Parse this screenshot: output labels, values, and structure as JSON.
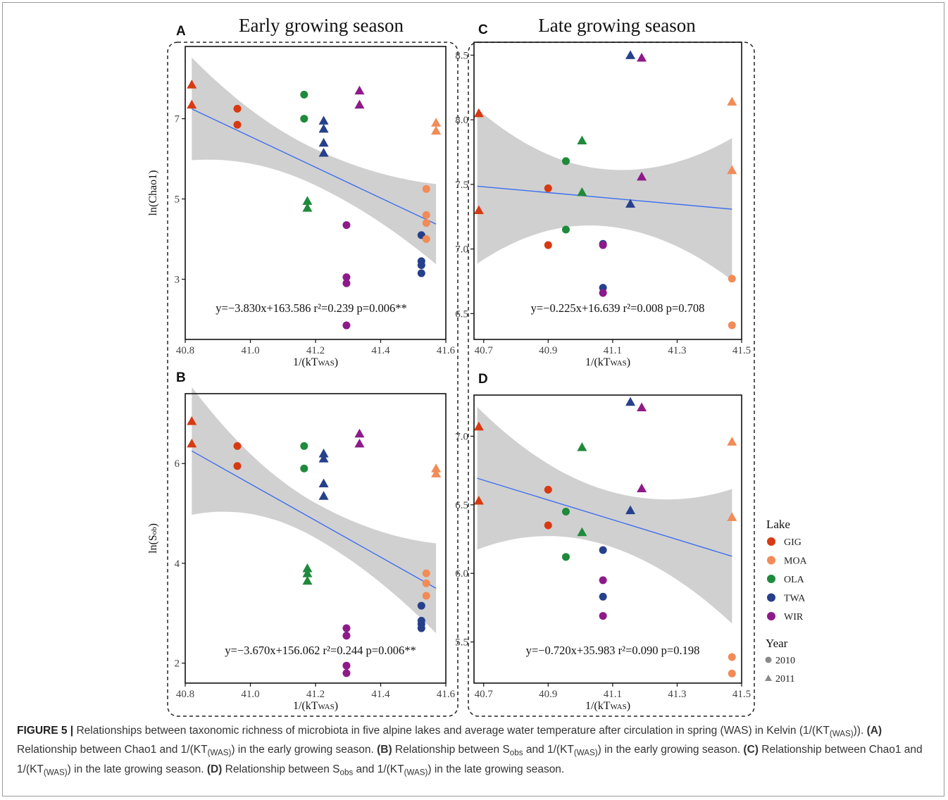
{
  "figure": {
    "titles": {
      "early": "Early growing season",
      "late": "Late growing season"
    },
    "caption": {
      "label": "FIGURE 5 |",
      "parts": [
        {
          "t": " Relationships between taxonomic richness of microbiota in five alpine lakes and average water temperature after circulation in spring (WAS) in Kelvin (1/(KT"
        },
        {
          "t": "(WAS)",
          "sub": true
        },
        {
          "t": ")). "
        },
        {
          "t": "(A)",
          "b": true
        },
        {
          "t": " Relationship between Chao1 and 1/(KT"
        },
        {
          "t": "(WAS)",
          "sub": true
        },
        {
          "t": ") in the early growing season. "
        },
        {
          "t": "(B)",
          "b": true
        },
        {
          "t": " Relationship between S"
        },
        {
          "t": "obs",
          "sub": true
        },
        {
          "t": " and 1/(KT"
        },
        {
          "t": "(WAS)",
          "sub": true
        },
        {
          "t": ") in the early growing season. "
        },
        {
          "t": "(C)",
          "b": true
        },
        {
          "t": " Relationship between Chao1 and 1/(KT"
        },
        {
          "t": "(WAS)",
          "sub": true
        },
        {
          "t": ") in the late growing season. "
        },
        {
          "t": "(D)",
          "b": true
        },
        {
          "t": " Relationship between S"
        },
        {
          "t": "obs",
          "sub": true
        },
        {
          "t": " and 1/(KT"
        },
        {
          "t": "(WAS)",
          "sub": true
        },
        {
          "t": ") in the late growing season."
        }
      ]
    }
  },
  "legend": {
    "lake_title": "Lake",
    "lakes": [
      {
        "name": "GIG",
        "color": "#d73a12"
      },
      {
        "name": "MOA",
        "color": "#f28b57"
      },
      {
        "name": "OLA",
        "color": "#1f8a3c"
      },
      {
        "name": "TWA",
        "color": "#27408b"
      },
      {
        "name": "WIR",
        "color": "#8e1a8a"
      }
    ],
    "year_title": "Year",
    "years": [
      {
        "name": "2010",
        "shape": "circle"
      },
      {
        "name": "2011",
        "shape": "triangle"
      }
    ],
    "year_color": "#8a8a8a"
  },
  "chart_data": [
    {
      "panel": "A",
      "type": "scatter",
      "season": "early",
      "xlabel_main": "1/(kT",
      "xlabel_sub": "WAS",
      "xlabel_end": ")",
      "ylabel_main": "ln(Chao1)",
      "ylabel_sub": "",
      "xlim": [
        40.8,
        41.6
      ],
      "ylim": [
        1.5,
        8.8
      ],
      "xticks": [
        40.8,
        41.0,
        41.2,
        41.4,
        41.6
      ],
      "xtick_labels": [
        "40.8",
        "41.0",
        "41.2",
        "41.4",
        "41.6"
      ],
      "yticks": [
        3,
        5,
        7
      ],
      "ytick_labels": [
        "3",
        "5",
        "7"
      ],
      "fit": {
        "slope": -3.83,
        "intercept": 163.586,
        "x_range": [
          40.82,
          41.57
        ],
        "ci_halfwidth": [
          1.28,
          0.45,
          1.0
        ]
      },
      "equation": "y=−3.830x+163.586 r²=0.239 p=0.006**",
      "points": [
        {
          "x": 40.82,
          "y": 7.85,
          "lake": "GIG",
          "year": "2011"
        },
        {
          "x": 40.82,
          "y": 7.35,
          "lake": "GIG",
          "year": "2011"
        },
        {
          "x": 40.96,
          "y": 7.25,
          "lake": "GIG",
          "year": "2010"
        },
        {
          "x": 40.96,
          "y": 6.85,
          "lake": "GIG",
          "year": "2010"
        },
        {
          "x": 41.165,
          "y": 7.6,
          "lake": "OLA",
          "year": "2010"
        },
        {
          "x": 41.165,
          "y": 7.0,
          "lake": "OLA",
          "year": "2010"
        },
        {
          "x": 41.175,
          "y": 4.95,
          "lake": "OLA",
          "year": "2011"
        },
        {
          "x": 41.175,
          "y": 4.78,
          "lake": "OLA",
          "year": "2011"
        },
        {
          "x": 41.225,
          "y": 6.95,
          "lake": "TWA",
          "year": "2011"
        },
        {
          "x": 41.225,
          "y": 6.75,
          "lake": "TWA",
          "year": "2011"
        },
        {
          "x": 41.225,
          "y": 6.4,
          "lake": "TWA",
          "year": "2011"
        },
        {
          "x": 41.225,
          "y": 6.15,
          "lake": "TWA",
          "year": "2011"
        },
        {
          "x": 41.295,
          "y": 4.35,
          "lake": "WIR",
          "year": "2010"
        },
        {
          "x": 41.295,
          "y": 3.05,
          "lake": "WIR",
          "year": "2010"
        },
        {
          "x": 41.295,
          "y": 2.9,
          "lake": "WIR",
          "year": "2010"
        },
        {
          "x": 41.295,
          "y": 1.85,
          "lake": "WIR",
          "year": "2010"
        },
        {
          "x": 41.335,
          "y": 7.7,
          "lake": "WIR",
          "year": "2011"
        },
        {
          "x": 41.335,
          "y": 7.35,
          "lake": "WIR",
          "year": "2011"
        },
        {
          "x": 41.525,
          "y": 4.1,
          "lake": "TWA",
          "year": "2010"
        },
        {
          "x": 41.525,
          "y": 3.45,
          "lake": "TWA",
          "year": "2010"
        },
        {
          "x": 41.525,
          "y": 3.35,
          "lake": "TWA",
          "year": "2010"
        },
        {
          "x": 41.525,
          "y": 3.15,
          "lake": "TWA",
          "year": "2010"
        },
        {
          "x": 41.54,
          "y": 5.25,
          "lake": "MOA",
          "year": "2010"
        },
        {
          "x": 41.54,
          "y": 4.6,
          "lake": "MOA",
          "year": "2010"
        },
        {
          "x": 41.54,
          "y": 4.4,
          "lake": "MOA",
          "year": "2010"
        },
        {
          "x": 41.54,
          "y": 4.0,
          "lake": "MOA",
          "year": "2010"
        },
        {
          "x": 41.57,
          "y": 6.9,
          "lake": "MOA",
          "year": "2011"
        },
        {
          "x": 41.57,
          "y": 6.7,
          "lake": "MOA",
          "year": "2011"
        }
      ]
    },
    {
      "panel": "B",
      "type": "scatter",
      "season": "early",
      "xlabel_main": "1/(kT",
      "xlabel_sub": "WAS",
      "xlabel_end": ")",
      "ylabel_main": "ln(S",
      "ylabel_sub": "ob",
      "ylabel_end": ")",
      "xlim": [
        40.8,
        41.6
      ],
      "ylim": [
        1.6,
        7.4
      ],
      "xticks": [
        40.8,
        41.0,
        41.2,
        41.4,
        41.6
      ],
      "xtick_labels": [
        "40.8",
        "41.0",
        "41.2",
        "41.4",
        "41.6"
      ],
      "yticks": [
        2,
        4,
        6
      ],
      "ytick_labels": [
        "2",
        "4",
        "6"
      ],
      "fit": {
        "slope": -3.67,
        "intercept": 156.062,
        "x_range": [
          40.82,
          41.57
        ],
        "ci_halfwidth": [
          1.28,
          0.35,
          0.9
        ]
      },
      "equation": "y=−3.670x+156.062 r²=0.244 p=0.006**",
      "points": [
        {
          "x": 40.82,
          "y": 6.85,
          "lake": "GIG",
          "year": "2011"
        },
        {
          "x": 40.82,
          "y": 6.4,
          "lake": "GIG",
          "year": "2011"
        },
        {
          "x": 40.96,
          "y": 6.35,
          "lake": "GIG",
          "year": "2010"
        },
        {
          "x": 40.96,
          "y": 5.95,
          "lake": "GIG",
          "year": "2010"
        },
        {
          "x": 41.165,
          "y": 6.35,
          "lake": "OLA",
          "year": "2010"
        },
        {
          "x": 41.165,
          "y": 5.9,
          "lake": "OLA",
          "year": "2010"
        },
        {
          "x": 41.175,
          "y": 3.9,
          "lake": "OLA",
          "year": "2011"
        },
        {
          "x": 41.175,
          "y": 3.8,
          "lake": "OLA",
          "year": "2011"
        },
        {
          "x": 41.175,
          "y": 3.65,
          "lake": "OLA",
          "year": "2011"
        },
        {
          "x": 41.225,
          "y": 6.2,
          "lake": "TWA",
          "year": "2011"
        },
        {
          "x": 41.225,
          "y": 6.1,
          "lake": "TWA",
          "year": "2011"
        },
        {
          "x": 41.225,
          "y": 5.6,
          "lake": "TWA",
          "year": "2011"
        },
        {
          "x": 41.225,
          "y": 5.35,
          "lake": "TWA",
          "year": "2011"
        },
        {
          "x": 41.295,
          "y": 2.7,
          "lake": "WIR",
          "year": "2010"
        },
        {
          "x": 41.295,
          "y": 2.55,
          "lake": "WIR",
          "year": "2010"
        },
        {
          "x": 41.295,
          "y": 1.95,
          "lake": "WIR",
          "year": "2010"
        },
        {
          "x": 41.295,
          "y": 1.8,
          "lake": "WIR",
          "year": "2010"
        },
        {
          "x": 41.335,
          "y": 6.6,
          "lake": "WIR",
          "year": "2011"
        },
        {
          "x": 41.335,
          "y": 6.4,
          "lake": "WIR",
          "year": "2011"
        },
        {
          "x": 41.525,
          "y": 3.15,
          "lake": "TWA",
          "year": "2010"
        },
        {
          "x": 41.525,
          "y": 2.85,
          "lake": "TWA",
          "year": "2010"
        },
        {
          "x": 41.525,
          "y": 2.78,
          "lake": "TWA",
          "year": "2010"
        },
        {
          "x": 41.525,
          "y": 2.7,
          "lake": "TWA",
          "year": "2010"
        },
        {
          "x": 41.54,
          "y": 3.8,
          "lake": "MOA",
          "year": "2010"
        },
        {
          "x": 41.54,
          "y": 3.6,
          "lake": "MOA",
          "year": "2010"
        },
        {
          "x": 41.54,
          "y": 3.35,
          "lake": "MOA",
          "year": "2010"
        },
        {
          "x": 41.57,
          "y": 5.9,
          "lake": "MOA",
          "year": "2011"
        },
        {
          "x": 41.57,
          "y": 5.8,
          "lake": "MOA",
          "year": "2011"
        }
      ]
    },
    {
      "panel": "C",
      "type": "scatter",
      "season": "late",
      "xlabel_main": "1/(kT",
      "xlabel_sub": "WAS",
      "xlabel_end": ")",
      "ylabel_main": "",
      "ylabel_sub": "",
      "xlim": [
        40.67,
        41.5
      ],
      "ylim": [
        6.3,
        8.6
      ],
      "xticks": [
        40.7,
        40.9,
        41.1,
        41.3,
        41.5
      ],
      "xtick_labels": [
        "40.7",
        "40.9",
        "41.1",
        "41.3",
        "41.5"
      ],
      "yticks": [
        6.5,
        7.0,
        7.5,
        8.0,
        8.5
      ],
      "ytick_labels": [
        "6.5",
        "7.0",
        "7.5",
        "8.0",
        "8.5"
      ],
      "fit": {
        "slope": -0.225,
        "intercept": 16.639,
        "x_range": [
          40.68,
          41.47
        ],
        "ci_halfwidth": [
          0.6,
          0.22,
          0.55
        ]
      },
      "equation": "y=−0.225x+16.639 r²=0.008 p=0.708",
      "points": [
        {
          "x": 40.685,
          "y": 8.05,
          "lake": "GIG",
          "year": "2011"
        },
        {
          "x": 40.685,
          "y": 7.3,
          "lake": "GIG",
          "year": "2011"
        },
        {
          "x": 40.9,
          "y": 7.47,
          "lake": "GIG",
          "year": "2010"
        },
        {
          "x": 40.9,
          "y": 7.03,
          "lake": "GIG",
          "year": "2010"
        },
        {
          "x": 40.955,
          "y": 7.68,
          "lake": "OLA",
          "year": "2010"
        },
        {
          "x": 40.955,
          "y": 7.15,
          "lake": "OLA",
          "year": "2010"
        },
        {
          "x": 41.005,
          "y": 7.84,
          "lake": "OLA",
          "year": "2011"
        },
        {
          "x": 41.005,
          "y": 7.44,
          "lake": "OLA",
          "year": "2011"
        },
        {
          "x": 41.07,
          "y": 7.04,
          "lake": "TWA",
          "year": "2010"
        },
        {
          "x": 41.07,
          "y": 6.7,
          "lake": "TWA",
          "year": "2010"
        },
        {
          "x": 41.07,
          "y": 7.03,
          "lake": "WIR",
          "year": "2010"
        },
        {
          "x": 41.07,
          "y": 6.66,
          "lake": "WIR",
          "year": "2010"
        },
        {
          "x": 41.155,
          "y": 8.5,
          "lake": "TWA",
          "year": "2011"
        },
        {
          "x": 41.155,
          "y": 7.35,
          "lake": "TWA",
          "year": "2011"
        },
        {
          "x": 41.19,
          "y": 8.48,
          "lake": "WIR",
          "year": "2011"
        },
        {
          "x": 41.19,
          "y": 7.56,
          "lake": "WIR",
          "year": "2011"
        },
        {
          "x": 41.47,
          "y": 8.14,
          "lake": "MOA",
          "year": "2011"
        },
        {
          "x": 41.47,
          "y": 7.61,
          "lake": "MOA",
          "year": "2011"
        },
        {
          "x": 41.47,
          "y": 6.77,
          "lake": "MOA",
          "year": "2010"
        },
        {
          "x": 41.47,
          "y": 6.41,
          "lake": "MOA",
          "year": "2010"
        }
      ]
    },
    {
      "panel": "D",
      "type": "scatter",
      "season": "late",
      "xlabel_main": "1/(kT",
      "xlabel_sub": "WAS",
      "xlabel_end": ")",
      "ylabel_main": "",
      "ylabel_sub": "",
      "xlim": [
        40.67,
        41.5
      ],
      "ylim": [
        5.2,
        7.3
      ],
      "xticks": [
        40.7,
        40.9,
        41.1,
        41.3,
        41.5
      ],
      "xtick_labels": [
        "40.7",
        "40.9",
        "41.1",
        "41.3",
        "41.5"
      ],
      "yticks": [
        5.5,
        6.0,
        6.5,
        7.0
      ],
      "ytick_labels": [
        "5.5",
        "6.0",
        "6.5",
        "7.0"
      ],
      "fit": {
        "slope": -0.72,
        "intercept": 35.983,
        "x_range": [
          40.68,
          41.47
        ],
        "ci_halfwidth": [
          0.52,
          0.2,
          0.49
        ]
      },
      "equation": "y=−0.720x+35.983 r²=0.090 p=0.198",
      "points": [
        {
          "x": 40.685,
          "y": 7.07,
          "lake": "GIG",
          "year": "2011"
        },
        {
          "x": 40.685,
          "y": 6.53,
          "lake": "GIG",
          "year": "2011"
        },
        {
          "x": 40.9,
          "y": 6.61,
          "lake": "GIG",
          "year": "2010"
        },
        {
          "x": 40.9,
          "y": 6.35,
          "lake": "GIG",
          "year": "2010"
        },
        {
          "x": 40.955,
          "y": 6.45,
          "lake": "OLA",
          "year": "2010"
        },
        {
          "x": 40.955,
          "y": 6.12,
          "lake": "OLA",
          "year": "2010"
        },
        {
          "x": 41.005,
          "y": 6.92,
          "lake": "OLA",
          "year": "2011"
        },
        {
          "x": 41.005,
          "y": 6.3,
          "lake": "OLA",
          "year": "2011"
        },
        {
          "x": 41.07,
          "y": 6.17,
          "lake": "TWA",
          "year": "2010"
        },
        {
          "x": 41.07,
          "y": 5.83,
          "lake": "TWA",
          "year": "2010"
        },
        {
          "x": 41.07,
          "y": 5.95,
          "lake": "WIR",
          "year": "2010"
        },
        {
          "x": 41.07,
          "y": 5.69,
          "lake": "WIR",
          "year": "2010"
        },
        {
          "x": 41.155,
          "y": 7.25,
          "lake": "TWA",
          "year": "2011"
        },
        {
          "x": 41.155,
          "y": 6.46,
          "lake": "TWA",
          "year": "2011"
        },
        {
          "x": 41.19,
          "y": 7.21,
          "lake": "WIR",
          "year": "2011"
        },
        {
          "x": 41.19,
          "y": 6.62,
          "lake": "WIR",
          "year": "2011"
        },
        {
          "x": 41.47,
          "y": 6.96,
          "lake": "MOA",
          "year": "2011"
        },
        {
          "x": 41.47,
          "y": 6.41,
          "lake": "MOA",
          "year": "2011"
        },
        {
          "x": 41.47,
          "y": 5.39,
          "lake": "MOA",
          "year": "2010"
        },
        {
          "x": 41.47,
          "y": 5.27,
          "lake": "MOA",
          "year": "2010"
        }
      ]
    }
  ],
  "style": {
    "fit_line": "#3d6ef0",
    "ci_fill": "#d0d0d0"
  }
}
